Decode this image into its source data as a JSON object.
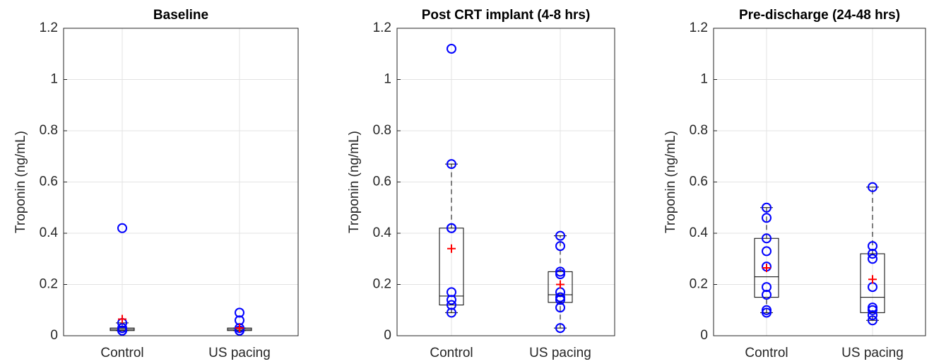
{
  "chart_data": [
    {
      "type": "box",
      "title": "Baseline",
      "ylabel": "Troponin (ng/mL)",
      "categories": [
        "Control",
        "US pacing"
      ],
      "q1": [
        0.02,
        0.02
      ],
      "median": [
        0.025,
        0.025
      ],
      "q3": [
        0.03,
        0.03
      ],
      "whisker_low": [
        0.02,
        0.02
      ],
      "whisker_high": [
        0.05,
        0.03
      ],
      "mean": [
        0.065,
        0.03
      ],
      "points": [
        [
          0.42,
          0.05,
          0.03,
          0.02,
          0.02
        ],
        [
          0.09,
          0.06,
          0.03,
          0.02,
          0.02
        ]
      ],
      "ylim": [
        0,
        1.2
      ],
      "yticks": [
        0,
        0.2,
        0.4,
        0.6,
        0.8,
        1,
        1.2
      ],
      "grid": true,
      "box_color": "#000000",
      "point_color": "#0000ff",
      "mean_color": "#ff0000"
    },
    {
      "type": "box",
      "title": "Post CRT implant (4-8 hrs)",
      "ylabel": "Troponin (ng/mL)",
      "categories": [
        "Control",
        "US pacing"
      ],
      "q1": [
        0.12,
        0.13
      ],
      "median": [
        0.155,
        0.16
      ],
      "q3": [
        0.42,
        0.25
      ],
      "whisker_low": [
        0.09,
        0.03
      ],
      "whisker_high": [
        0.67,
        0.39
      ],
      "mean": [
        0.34,
        0.2
      ],
      "points": [
        [
          1.12,
          0.67,
          0.42,
          0.42,
          0.17,
          0.14,
          0.12,
          0.09
        ],
        [
          0.39,
          0.35,
          0.25,
          0.24,
          0.17,
          0.15,
          0.14,
          0.11,
          0.03
        ]
      ],
      "ylim": [
        0,
        1.2
      ],
      "yticks": [
        0,
        0.2,
        0.4,
        0.6,
        0.8,
        1,
        1.2
      ],
      "grid": true,
      "box_color": "#000000",
      "point_color": "#0000ff",
      "mean_color": "#ff0000"
    },
    {
      "type": "box",
      "title": "Pre-discharge (24-48 hrs)",
      "ylabel": "Troponin (ng/mL)",
      "categories": [
        "Control",
        "US pacing"
      ],
      "q1": [
        0.15,
        0.09
      ],
      "median": [
        0.23,
        0.15
      ],
      "q3": [
        0.38,
        0.32
      ],
      "whisker_low": [
        0.09,
        0.06
      ],
      "whisker_high": [
        0.5,
        0.58
      ],
      "mean": [
        0.265,
        0.22
      ],
      "points": [
        [
          0.5,
          0.46,
          0.38,
          0.33,
          0.27,
          0.19,
          0.16,
          0.1,
          0.09
        ],
        [
          0.58,
          0.35,
          0.32,
          0.3,
          0.19,
          0.11,
          0.1,
          0.08,
          0.06
        ]
      ],
      "ylim": [
        0,
        1.2
      ],
      "yticks": [
        0,
        0.2,
        0.4,
        0.6,
        0.8,
        1,
        1.2
      ],
      "grid": true,
      "box_color": "#000000",
      "point_color": "#0000ff",
      "mean_color": "#ff0000"
    }
  ]
}
